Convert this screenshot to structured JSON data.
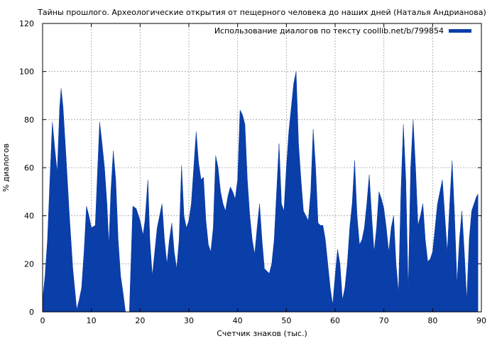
{
  "chart_data": {
    "type": "area",
    "title": "Тайны прошлого. Археологические открытия от пещерного человека до наших дней (Наталья Андрианова)",
    "xlabel": "Счетчик знаков (тыс.)",
    "ylabel": "% диалогов",
    "xlim": [
      0,
      90
    ],
    "ylim": [
      0,
      120
    ],
    "xticks": [
      0,
      10,
      20,
      30,
      40,
      50,
      60,
      70,
      80,
      90
    ],
    "yticks": [
      0,
      20,
      40,
      60,
      80,
      100,
      120
    ],
    "grid": true,
    "legend_position": "top-right",
    "series": [
      {
        "name": "Использование диалогов по тексту coollib.net/b/799854",
        "color": "#0a3ea8",
        "points": [
          [
            0,
            5
          ],
          [
            0.5,
            15
          ],
          [
            1.0,
            30
          ],
          [
            1.5,
            55
          ],
          [
            2.0,
            79
          ],
          [
            2.5,
            68
          ],
          [
            3.0,
            58
          ],
          [
            3.5,
            85
          ],
          [
            3.8,
            93
          ],
          [
            4.2,
            85
          ],
          [
            4.8,
            65
          ],
          [
            5.5,
            40
          ],
          [
            6.2,
            18
          ],
          [
            7.0,
            1
          ],
          [
            7.5,
            5
          ],
          [
            8.0,
            10
          ],
          [
            8.5,
            25
          ],
          [
            9.0,
            44
          ],
          [
            9.5,
            40
          ],
          [
            10.0,
            35
          ],
          [
            10.8,
            36
          ],
          [
            11.3,
            60
          ],
          [
            11.7,
            79
          ],
          [
            12.2,
            70
          ],
          [
            12.7,
            60
          ],
          [
            13.2,
            45
          ],
          [
            13.6,
            28
          ],
          [
            14.0,
            50
          ],
          [
            14.5,
            67
          ],
          [
            15.0,
            55
          ],
          [
            15.5,
            30
          ],
          [
            16.0,
            15
          ],
          [
            16.5,
            8
          ],
          [
            17.0,
            0
          ],
          [
            17.8,
            0
          ],
          [
            18.5,
            44
          ],
          [
            19.2,
            43
          ],
          [
            20.0,
            38
          ],
          [
            20.6,
            32
          ],
          [
            21.0,
            38
          ],
          [
            21.6,
            55
          ],
          [
            22.0,
            30
          ],
          [
            22.5,
            15
          ],
          [
            23.0,
            25
          ],
          [
            23.5,
            35
          ],
          [
            24.0,
            40
          ],
          [
            24.5,
            45
          ],
          [
            25.0,
            30
          ],
          [
            25.5,
            20
          ],
          [
            26.0,
            30
          ],
          [
            26.5,
            37
          ],
          [
            27.0,
            25
          ],
          [
            27.5,
            18
          ],
          [
            28.0,
            30
          ],
          [
            28.5,
            61
          ],
          [
            29.0,
            40
          ],
          [
            29.5,
            35
          ],
          [
            30.0,
            38
          ],
          [
            30.5,
            45
          ],
          [
            31.0,
            60
          ],
          [
            31.5,
            75
          ],
          [
            32.0,
            62
          ],
          [
            32.5,
            55
          ],
          [
            33.0,
            56
          ],
          [
            33.5,
            38
          ],
          [
            34.0,
            28
          ],
          [
            34.5,
            25
          ],
          [
            35.0,
            35
          ],
          [
            35.5,
            65
          ],
          [
            36.0,
            60
          ],
          [
            36.5,
            50
          ],
          [
            37.0,
            45
          ],
          [
            37.5,
            42
          ],
          [
            38.0,
            48
          ],
          [
            38.5,
            52
          ],
          [
            39.0,
            50
          ],
          [
            39.5,
            47
          ],
          [
            40.0,
            55
          ],
          [
            40.5,
            84
          ],
          [
            41.0,
            82
          ],
          [
            41.5,
            78
          ],
          [
            42.0,
            55
          ],
          [
            42.5,
            40
          ],
          [
            43.0,
            30
          ],
          [
            43.5,
            24
          ],
          [
            44.0,
            35
          ],
          [
            44.5,
            45
          ],
          [
            45.0,
            30
          ],
          [
            45.5,
            18
          ],
          [
            46.0,
            17
          ],
          [
            46.5,
            16
          ],
          [
            47.0,
            20
          ],
          [
            47.5,
            30
          ],
          [
            48.0,
            50
          ],
          [
            48.5,
            70
          ],
          [
            49.0,
            45
          ],
          [
            49.5,
            42
          ],
          [
            50.0,
            60
          ],
          [
            50.5,
            75
          ],
          [
            51.0,
            85
          ],
          [
            51.5,
            95
          ],
          [
            52.0,
            100
          ],
          [
            52.5,
            70
          ],
          [
            53.0,
            55
          ],
          [
            53.5,
            42
          ],
          [
            54.0,
            40
          ],
          [
            54.5,
            38
          ],
          [
            55.0,
            50
          ],
          [
            55.5,
            76
          ],
          [
            56.0,
            60
          ],
          [
            56.5,
            37
          ],
          [
            57.0,
            36
          ],
          [
            57.5,
            36
          ],
          [
            58.0,
            30
          ],
          [
            58.5,
            20
          ],
          [
            59.0,
            10
          ],
          [
            59.5,
            3
          ],
          [
            60.0,
            15
          ],
          [
            60.5,
            26
          ],
          [
            61.0,
            20
          ],
          [
            61.5,
            5
          ],
          [
            62.0,
            10
          ],
          [
            62.5,
            20
          ],
          [
            63.0,
            35
          ],
          [
            63.5,
            45
          ],
          [
            64.0,
            63
          ],
          [
            64.5,
            40
          ],
          [
            65.0,
            28
          ],
          [
            65.5,
            30
          ],
          [
            66.0,
            35
          ],
          [
            66.5,
            45
          ],
          [
            67.0,
            57
          ],
          [
            67.5,
            40
          ],
          [
            68.0,
            25
          ],
          [
            68.5,
            35
          ],
          [
            69.0,
            50
          ],
          [
            69.5,
            47
          ],
          [
            70.0,
            43
          ],
          [
            70.5,
            35
          ],
          [
            71.0,
            25
          ],
          [
            71.5,
            35
          ],
          [
            72.0,
            40
          ],
          [
            72.5,
            20
          ],
          [
            73.0,
            8
          ],
          [
            73.5,
            50
          ],
          [
            74.0,
            78
          ],
          [
            74.5,
            55
          ],
          [
            75.0,
            9
          ],
          [
            75.5,
            60
          ],
          [
            76.0,
            80
          ],
          [
            76.5,
            60
          ],
          [
            77.0,
            36
          ],
          [
            77.5,
            40
          ],
          [
            78.0,
            45
          ],
          [
            78.5,
            30
          ],
          [
            79.0,
            21
          ],
          [
            79.5,
            22
          ],
          [
            80.0,
            25
          ],
          [
            80.5,
            35
          ],
          [
            81.0,
            45
          ],
          [
            81.5,
            50
          ],
          [
            82.0,
            55
          ],
          [
            82.5,
            40
          ],
          [
            83.0,
            25
          ],
          [
            83.5,
            45
          ],
          [
            84.0,
            63
          ],
          [
            84.5,
            40
          ],
          [
            85.0,
            12
          ],
          [
            85.5,
            30
          ],
          [
            86.0,
            42
          ],
          [
            86.5,
            25
          ],
          [
            87.0,
            5
          ],
          [
            87.5,
            30
          ],
          [
            88.0,
            42
          ],
          [
            88.5,
            45
          ],
          [
            89.0,
            48
          ],
          [
            89.3,
            49
          ]
        ]
      }
    ]
  }
}
